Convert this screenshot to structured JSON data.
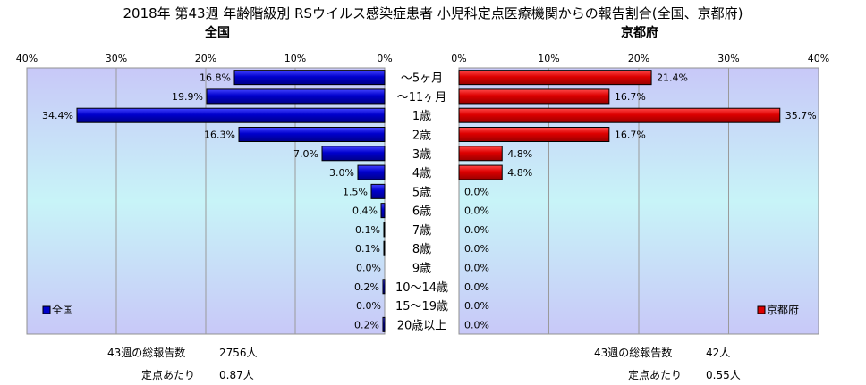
{
  "title": "2018年 第43週 年齢階級別 RSウイルス感染症患者 小児科定点医療機関からの報告割合(全国、京都府)",
  "colors": {
    "national": "#0000cc",
    "kyoto": "#dd0000"
  },
  "chart_data": [
    {
      "type": "bar",
      "orientation": "horizontal-left",
      "title": "全国",
      "xlim": [
        0,
        40
      ],
      "x_ticks": [
        "40%",
        "30%",
        "20%",
        "10%",
        "0%"
      ],
      "categories": [
        "～5ヶ月",
        "～11ヶ月",
        "1歳",
        "2歳",
        "3歳",
        "4歳",
        "5歳",
        "6歳",
        "7歳",
        "8歳",
        "9歳",
        "10～14歳",
        "15～19歳",
        "20歳以上"
      ],
      "series": [
        {
          "name": "全国",
          "values": [
            16.8,
            19.9,
            34.4,
            16.3,
            7.0,
            3.0,
            1.5,
            0.4,
            0.1,
            0.1,
            0.0,
            0.2,
            0.0,
            0.2
          ],
          "labels": [
            "16.8%",
            "19.9%",
            "34.4%",
            "16.3%",
            "7.0%",
            "3.0%",
            "1.5%",
            "0.4%",
            "0.1%",
            "0.1%",
            "0.0%",
            "0.2%",
            "0.0%",
            "0.2%"
          ]
        }
      ],
      "legend": "bottom-left",
      "grid": true
    },
    {
      "type": "bar",
      "orientation": "horizontal-right",
      "title": "京都府",
      "xlim": [
        0,
        40
      ],
      "x_ticks": [
        "0%",
        "10%",
        "20%",
        "30%",
        "40%"
      ],
      "categories": [
        "～5ヶ月",
        "～11ヶ月",
        "1歳",
        "2歳",
        "3歳",
        "4歳",
        "5歳",
        "6歳",
        "7歳",
        "8歳",
        "9歳",
        "10～14歳",
        "15～19歳",
        "20歳以上"
      ],
      "series": [
        {
          "name": "京都府",
          "values": [
            21.4,
            16.7,
            35.7,
            16.7,
            4.8,
            4.8,
            0.0,
            0.0,
            0.0,
            0.0,
            0.0,
            0.0,
            0.0,
            0.0
          ],
          "labels": [
            "21.4%",
            "16.7%",
            "35.7%",
            "16.7%",
            "4.8%",
            "4.8%",
            "0.0%",
            "0.0%",
            "0.0%",
            "0.0%",
            "0.0%",
            "0.0%",
            "0.0%",
            "0.0%"
          ]
        }
      ],
      "legend": "bottom-right",
      "grid": true
    }
  ],
  "national_stats": {
    "total_label": "43週の総報告数",
    "total_value": "2756人",
    "per_label": "定点あたり",
    "per_value": "0.87人"
  },
  "kyoto_stats": {
    "total_label": "43週の総報告数",
    "total_value": "42人",
    "per_label": "定点あたり",
    "per_value": "0.55人"
  }
}
